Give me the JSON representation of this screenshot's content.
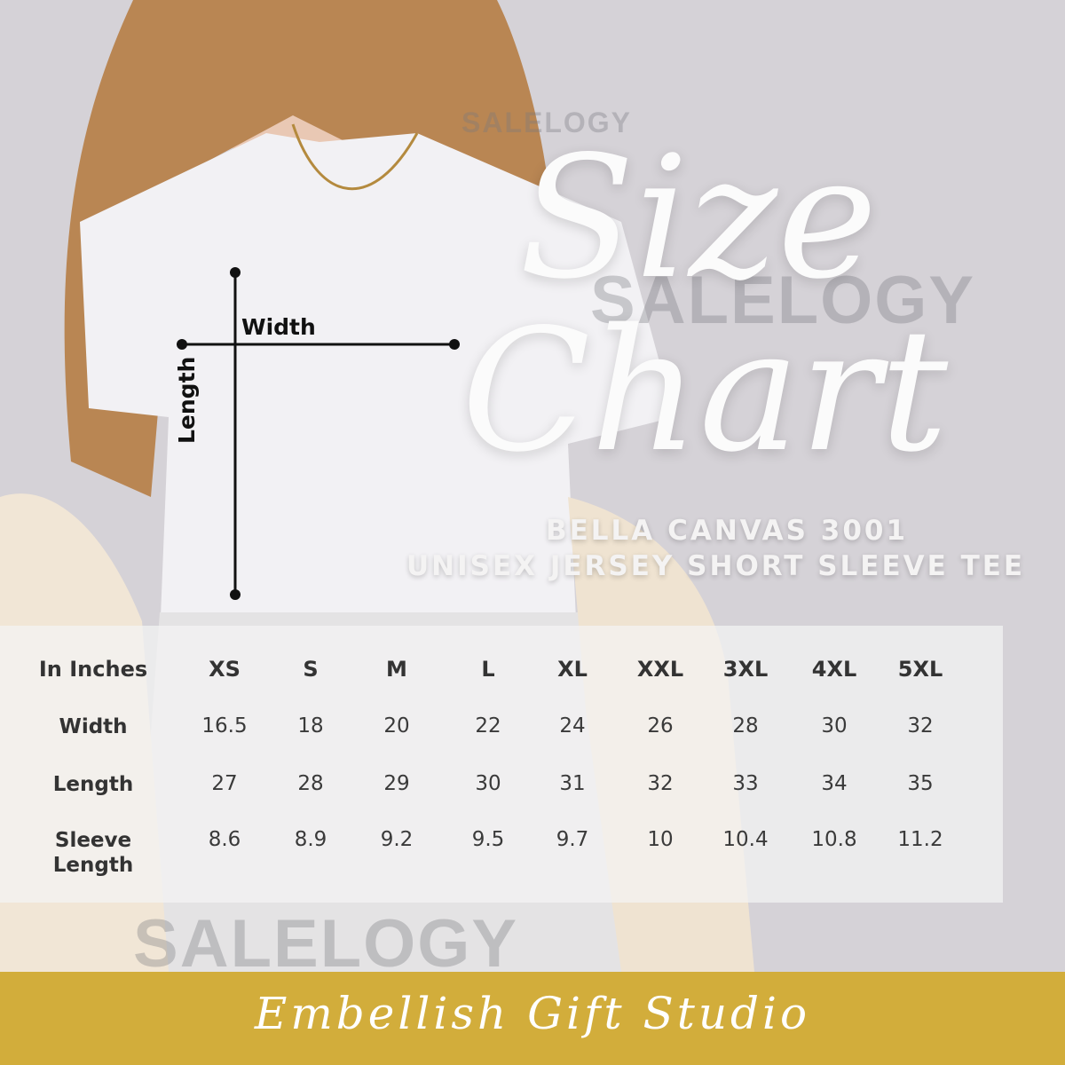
{
  "title": {
    "line1": "Size",
    "line2": "Chart"
  },
  "subtitle": {
    "line1": "BELLA CANVAS 3001",
    "line2": "UNISEX JERSEY SHORT SLEEVE TEE"
  },
  "watermark": "SALELOGY",
  "measure_labels": {
    "width": "Width",
    "length": "Length"
  },
  "size_table": {
    "header": [
      "In Inches",
      "XS",
      "S",
      "M",
      "L",
      "XL",
      "XXL",
      "3XL",
      "4XL",
      "5XL"
    ],
    "rows": [
      {
        "label": "Width",
        "values": [
          "16.5",
          "18",
          "20",
          "22",
          "24",
          "26",
          "28",
          "30",
          "32"
        ]
      },
      {
        "label": "Length",
        "values": [
          "27",
          "28",
          "29",
          "30",
          "31",
          "32",
          "33",
          "34",
          "35"
        ]
      },
      {
        "label": "Sleeve Length",
        "values": [
          "8.6",
          "8.9",
          "9.2",
          "9.5",
          "9.7",
          "10",
          "10.4",
          "10.8",
          "11.2"
        ]
      }
    ]
  },
  "footer": {
    "brand": "Embellish Gift Studio"
  },
  "colors": {
    "background": "#d5d2d7",
    "footer": "#d2ad3b",
    "text": "#333333"
  }
}
